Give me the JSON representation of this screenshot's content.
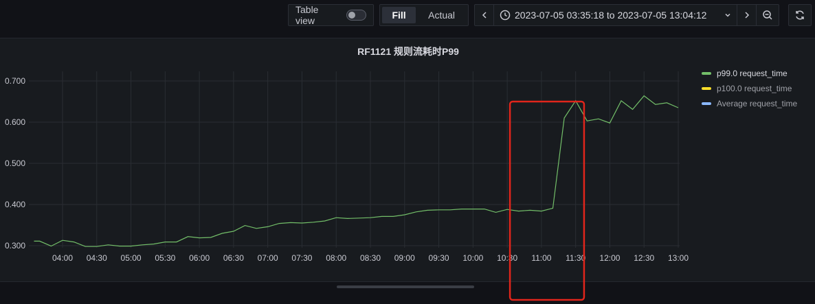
{
  "toolbar": {
    "table_view_label": "Table view",
    "table_view_enabled": false,
    "fill_label": "Fill",
    "actual_label": "Actual",
    "time_range": "2023-07-05 03:35:18 to 2023-07-05 13:04:12",
    "icons": [
      "chevron-left-icon",
      "clock-icon",
      "chevron-down-icon",
      "chevron-right-icon",
      "zoom-out-icon",
      "refresh-icon"
    ]
  },
  "panel": {
    "title": "RF1121 规则流耗时P99",
    "legend": [
      {
        "label": "p99.0 request_time",
        "color": "#73bf69",
        "state": "active"
      },
      {
        "label": "p100.0 request_time",
        "color": "#fade2a",
        "state": "hidden"
      },
      {
        "label": "Average request_time",
        "color": "#8ab8ff",
        "state": "hidden"
      }
    ]
  },
  "chart_data": {
    "type": "line",
    "title": "RF1121 规则流耗时P99",
    "x_ticks": [
      "04:00",
      "04:30",
      "05:00",
      "05:30",
      "06:00",
      "06:30",
      "07:00",
      "07:30",
      "08:00",
      "08:30",
      "09:00",
      "09:30",
      "10:00",
      "10:30",
      "11:00",
      "11:30",
      "12:00",
      "12:30",
      "13:00"
    ],
    "y_ticks": [
      "0.300",
      "0.400",
      "0.500",
      "0.600",
      "0.700"
    ],
    "ylim": [
      0.27,
      0.72
    ],
    "xlim": [
      "03:35",
      "13:04"
    ],
    "grid": true,
    "legend_position": "right",
    "series": [
      {
        "name": "p99.0 request_time",
        "color": "#73bf69",
        "points": [
          [
            "03:35",
            0.311
          ],
          [
            "03:40",
            0.311
          ],
          [
            "03:50",
            0.299
          ],
          [
            "04:00",
            0.313
          ],
          [
            "04:10",
            0.309
          ],
          [
            "04:20",
            0.298
          ],
          [
            "04:30",
            0.298
          ],
          [
            "04:40",
            0.302
          ],
          [
            "04:50",
            0.299
          ],
          [
            "05:00",
            0.299
          ],
          [
            "05:10",
            0.302
          ],
          [
            "05:20",
            0.304
          ],
          [
            "05:30",
            0.309
          ],
          [
            "05:40",
            0.309
          ],
          [
            "05:50",
            0.322
          ],
          [
            "06:00",
            0.319
          ],
          [
            "06:10",
            0.32
          ],
          [
            "06:20",
            0.33
          ],
          [
            "06:30",
            0.335
          ],
          [
            "06:40",
            0.349
          ],
          [
            "06:50",
            0.342
          ],
          [
            "07:00",
            0.346
          ],
          [
            "07:10",
            0.354
          ],
          [
            "07:20",
            0.356
          ],
          [
            "07:30",
            0.355
          ],
          [
            "07:40",
            0.357
          ],
          [
            "07:50",
            0.36
          ],
          [
            "08:00",
            0.368
          ],
          [
            "08:10",
            0.366
          ],
          [
            "08:20",
            0.367
          ],
          [
            "08:30",
            0.368
          ],
          [
            "08:40",
            0.371
          ],
          [
            "08:50",
            0.371
          ],
          [
            "09:00",
            0.375
          ],
          [
            "09:10",
            0.382
          ],
          [
            "09:20",
            0.386
          ],
          [
            "09:30",
            0.387
          ],
          [
            "09:40",
            0.387
          ],
          [
            "09:50",
            0.389
          ],
          [
            "10:00",
            0.389
          ],
          [
            "10:10",
            0.389
          ],
          [
            "10:20",
            0.381
          ],
          [
            "10:30",
            0.388
          ],
          [
            "10:40",
            0.384
          ],
          [
            "10:50",
            0.386
          ],
          [
            "11:00",
            0.384
          ],
          [
            "11:10",
            0.391
          ],
          [
            "11:20",
            0.61
          ],
          [
            "11:30",
            0.652
          ],
          [
            "11:40",
            0.603
          ],
          [
            "11:50",
            0.608
          ],
          [
            "12:00",
            0.598
          ],
          [
            "12:10",
            0.652
          ],
          [
            "12:20",
            0.631
          ],
          [
            "12:30",
            0.664
          ],
          [
            "12:40",
            0.643
          ],
          [
            "12:50",
            0.647
          ],
          [
            "13:00",
            0.635
          ]
        ]
      }
    ],
    "annotations": [
      {
        "type": "rectangle",
        "color": "#e1251b",
        "x_range": [
          "10:33",
          "11:38"
        ]
      }
    ]
  }
}
